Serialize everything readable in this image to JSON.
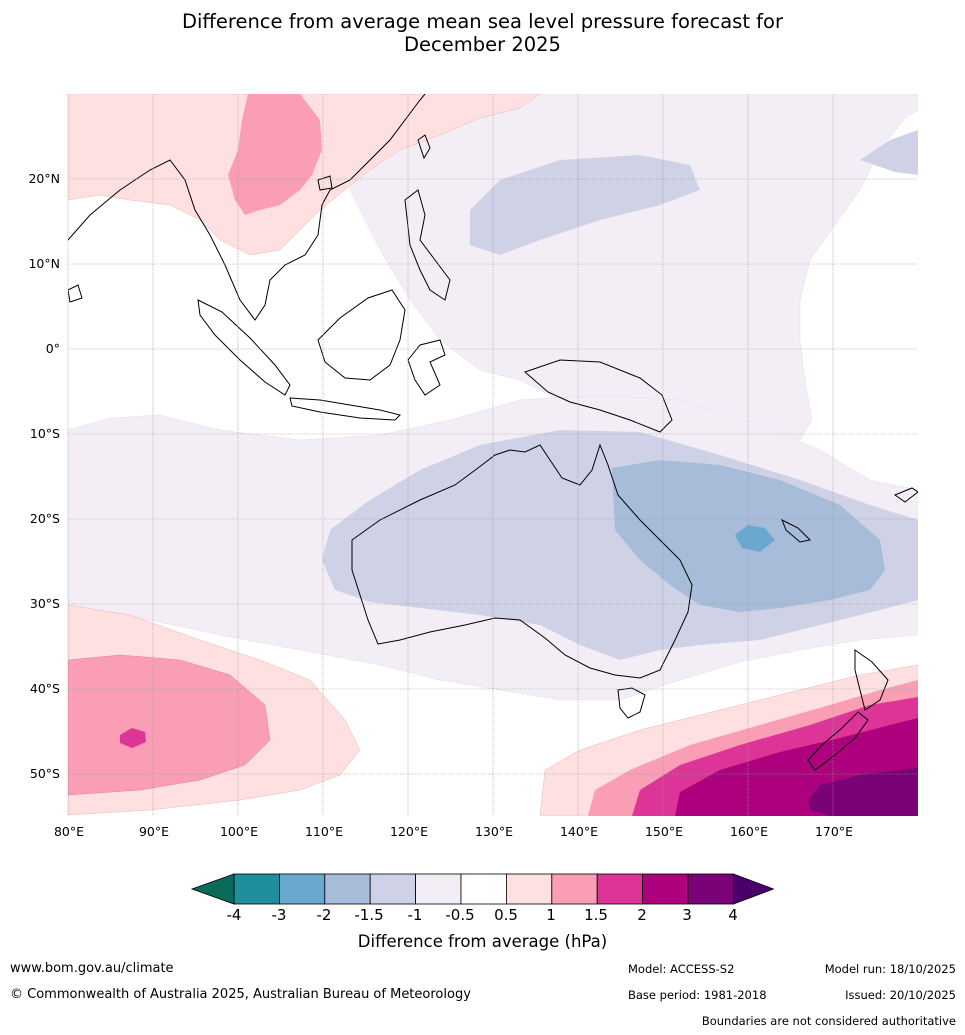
{
  "title": {
    "line1": "Difference from average mean sea level pressure forecast for",
    "line2": "December 2025"
  },
  "axes": {
    "lat_labels": [
      "20°N",
      "10°N",
      "0°",
      "10°S",
      "20°S",
      "30°S",
      "40°S",
      "50°S"
    ],
    "lon_labels": [
      "80°E",
      "90°E",
      "100°E",
      "110°E",
      "120°E",
      "130°E",
      "140°E",
      "150°E",
      "160°E",
      "170°E"
    ]
  },
  "colorbar": {
    "title": "Difference from average (hPa)",
    "ticks": [
      "-4",
      "-3",
      "-2",
      "-1.5",
      "-1",
      "-0.5",
      "0.5",
      "1",
      "1.5",
      "2",
      "3",
      "4"
    ],
    "colors": {
      "below_min": "#0b6b5a",
      "c1": "#1f8f9b",
      "c2": "#6aa9cf",
      "c3": "#a6bcd8",
      "c4": "#cfd1e6",
      "c5": "#f3eef6",
      "c6": "#ffffff",
      "c7": "#fde0df",
      "c8": "#f99eb4",
      "c9": "#dd3497",
      "c10": "#ae017e",
      "c11": "#7a0177",
      "above_max": "#4a006a"
    }
  },
  "footer": {
    "website": "www.bom.gov.au/climate",
    "copyright": "© Commonwealth of Australia 2025, Australian Bureau of Meteorology",
    "model": "Model: ACCESS-S2",
    "base_period": "Base period: 1981-2018",
    "model_run": "Model run: 18/10/2025",
    "issued": "Issued: 20/10/2025",
    "disclaimer": "Boundaries are not considered authoritative"
  }
}
